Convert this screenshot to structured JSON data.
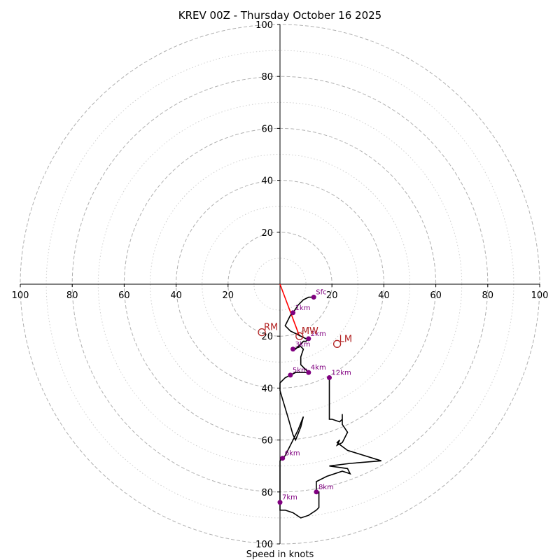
{
  "chart_data": {
    "type": "hodograph",
    "title": "KREV 00Z - Thursday October 16 2025",
    "xlabel": "Speed in knots",
    "range": [
      -100,
      100
    ],
    "ring_major": [
      20,
      40,
      60,
      80,
      100
    ],
    "ring_minor": [
      10,
      30,
      50,
      70,
      90
    ],
    "ticks_x": [
      {
        "value": -100,
        "label": "100"
      },
      {
        "value": -80,
        "label": "80"
      },
      {
        "value": -60,
        "label": "60"
      },
      {
        "value": -40,
        "label": "40"
      },
      {
        "value": -20,
        "label": "20"
      },
      {
        "value": 20,
        "label": "20"
      },
      {
        "value": 40,
        "label": "40"
      },
      {
        "value": 60,
        "label": "60"
      },
      {
        "value": 80,
        "label": "80"
      },
      {
        "value": 100,
        "label": "100"
      }
    ],
    "ticks_y": [
      {
        "value": 100,
        "label": "100"
      },
      {
        "value": 80,
        "label": "80"
      },
      {
        "value": 60,
        "label": "60"
      },
      {
        "value": 40,
        "label": "40"
      },
      {
        "value": 20,
        "label": "20"
      },
      {
        "value": -20,
        "label": "20"
      },
      {
        "value": -40,
        "label": "40"
      },
      {
        "value": -60,
        "label": "60"
      },
      {
        "value": -80,
        "label": "80"
      },
      {
        "value": -100,
        "label": "100"
      }
    ],
    "trace_uv": [
      [
        13,
        -5
      ],
      [
        11,
        -5
      ],
      [
        9,
        -6
      ],
      [
        7,
        -8
      ],
      [
        5,
        -11
      ],
      [
        4,
        -12
      ],
      [
        3,
        -14
      ],
      [
        2,
        -16
      ],
      [
        3,
        -17
      ],
      [
        4,
        -18
      ],
      [
        6,
        -19
      ],
      [
        8,
        -20
      ],
      [
        10,
        -21
      ],
      [
        11,
        -21
      ],
      [
        10,
        -22
      ],
      [
        9,
        -22
      ],
      [
        8,
        -23
      ],
      [
        7,
        -24
      ],
      [
        6,
        -25
      ],
      [
        5,
        -25
      ],
      [
        8,
        -24
      ],
      [
        9,
        -25
      ],
      [
        8,
        -28
      ],
      [
        8,
        -31
      ],
      [
        9,
        -32
      ],
      [
        11,
        -34
      ],
      [
        10,
        -34
      ],
      [
        8,
        -34
      ],
      [
        6,
        -34
      ],
      [
        4,
        -35
      ],
      [
        2,
        -36
      ],
      [
        0,
        -38
      ],
      [
        0,
        -41
      ],
      [
        3,
        -51
      ],
      [
        5,
        -58
      ],
      [
        6,
        -60
      ],
      [
        8,
        -55
      ],
      [
        9,
        -51
      ],
      [
        7,
        -56
      ],
      [
        5,
        -60
      ],
      [
        2,
        -66
      ],
      [
        1,
        -67
      ],
      [
        0,
        -68
      ],
      [
        0,
        -70
      ],
      [
        0,
        -84
      ],
      [
        0,
        -87
      ],
      [
        2,
        -87
      ],
      [
        5,
        -88
      ],
      [
        8,
        -90
      ],
      [
        11,
        -89
      ],
      [
        14,
        -87
      ],
      [
        15,
        -86
      ],
      [
        15,
        -80
      ],
      [
        14,
        -80
      ],
      [
        14,
        -76
      ],
      [
        18,
        -74
      ],
      [
        24,
        -72
      ],
      [
        27,
        -73
      ],
      [
        26,
        -71
      ],
      [
        19,
        -70
      ],
      [
        27,
        -69
      ],
      [
        39,
        -68
      ],
      [
        26,
        -64
      ],
      [
        22,
        -61
      ],
      [
        23,
        -60
      ],
      [
        22,
        -62
      ],
      [
        24,
        -61
      ],
      [
        26,
        -57
      ],
      [
        24,
        -54
      ],
      [
        24,
        -50
      ],
      [
        24,
        -52
      ],
      [
        23,
        -53
      ],
      [
        20,
        -52
      ],
      [
        19,
        -52
      ],
      [
        19,
        -36
      ]
    ],
    "height_markers": [
      {
        "label": "Sfc",
        "u": 13,
        "v": -5
      },
      {
        "label": "1km",
        "u": 5,
        "v": -11
      },
      {
        "label": "2km",
        "u": 11,
        "v": -21
      },
      {
        "label": "3km",
        "u": 5,
        "v": -25
      },
      {
        "label": "4km",
        "u": 11,
        "v": -34
      },
      {
        "label": "5km",
        "u": 4,
        "v": -35
      },
      {
        "label": "6km",
        "u": 1,
        "v": -67
      },
      {
        "label": "7km",
        "u": 0,
        "v": -84
      },
      {
        "label": "8km",
        "u": 14,
        "v": -80
      },
      {
        "label": "12km",
        "u": 19,
        "v": -36
      }
    ],
    "motions": [
      {
        "label": "RM",
        "u": -7,
        "v": -18.5
      },
      {
        "label": "MW",
        "u": 7.5,
        "v": -20
      },
      {
        "label": "LM",
        "u": 22,
        "v": -23
      }
    ],
    "shear_vector": {
      "from": [
        0,
        0
      ],
      "to": [
        7.5,
        -20
      ]
    },
    "colors": {
      "trace": "#000000",
      "marker": "#800080",
      "motion": "#b22222",
      "shear": "#ff0000",
      "grid": "#b0b0b0"
    }
  }
}
